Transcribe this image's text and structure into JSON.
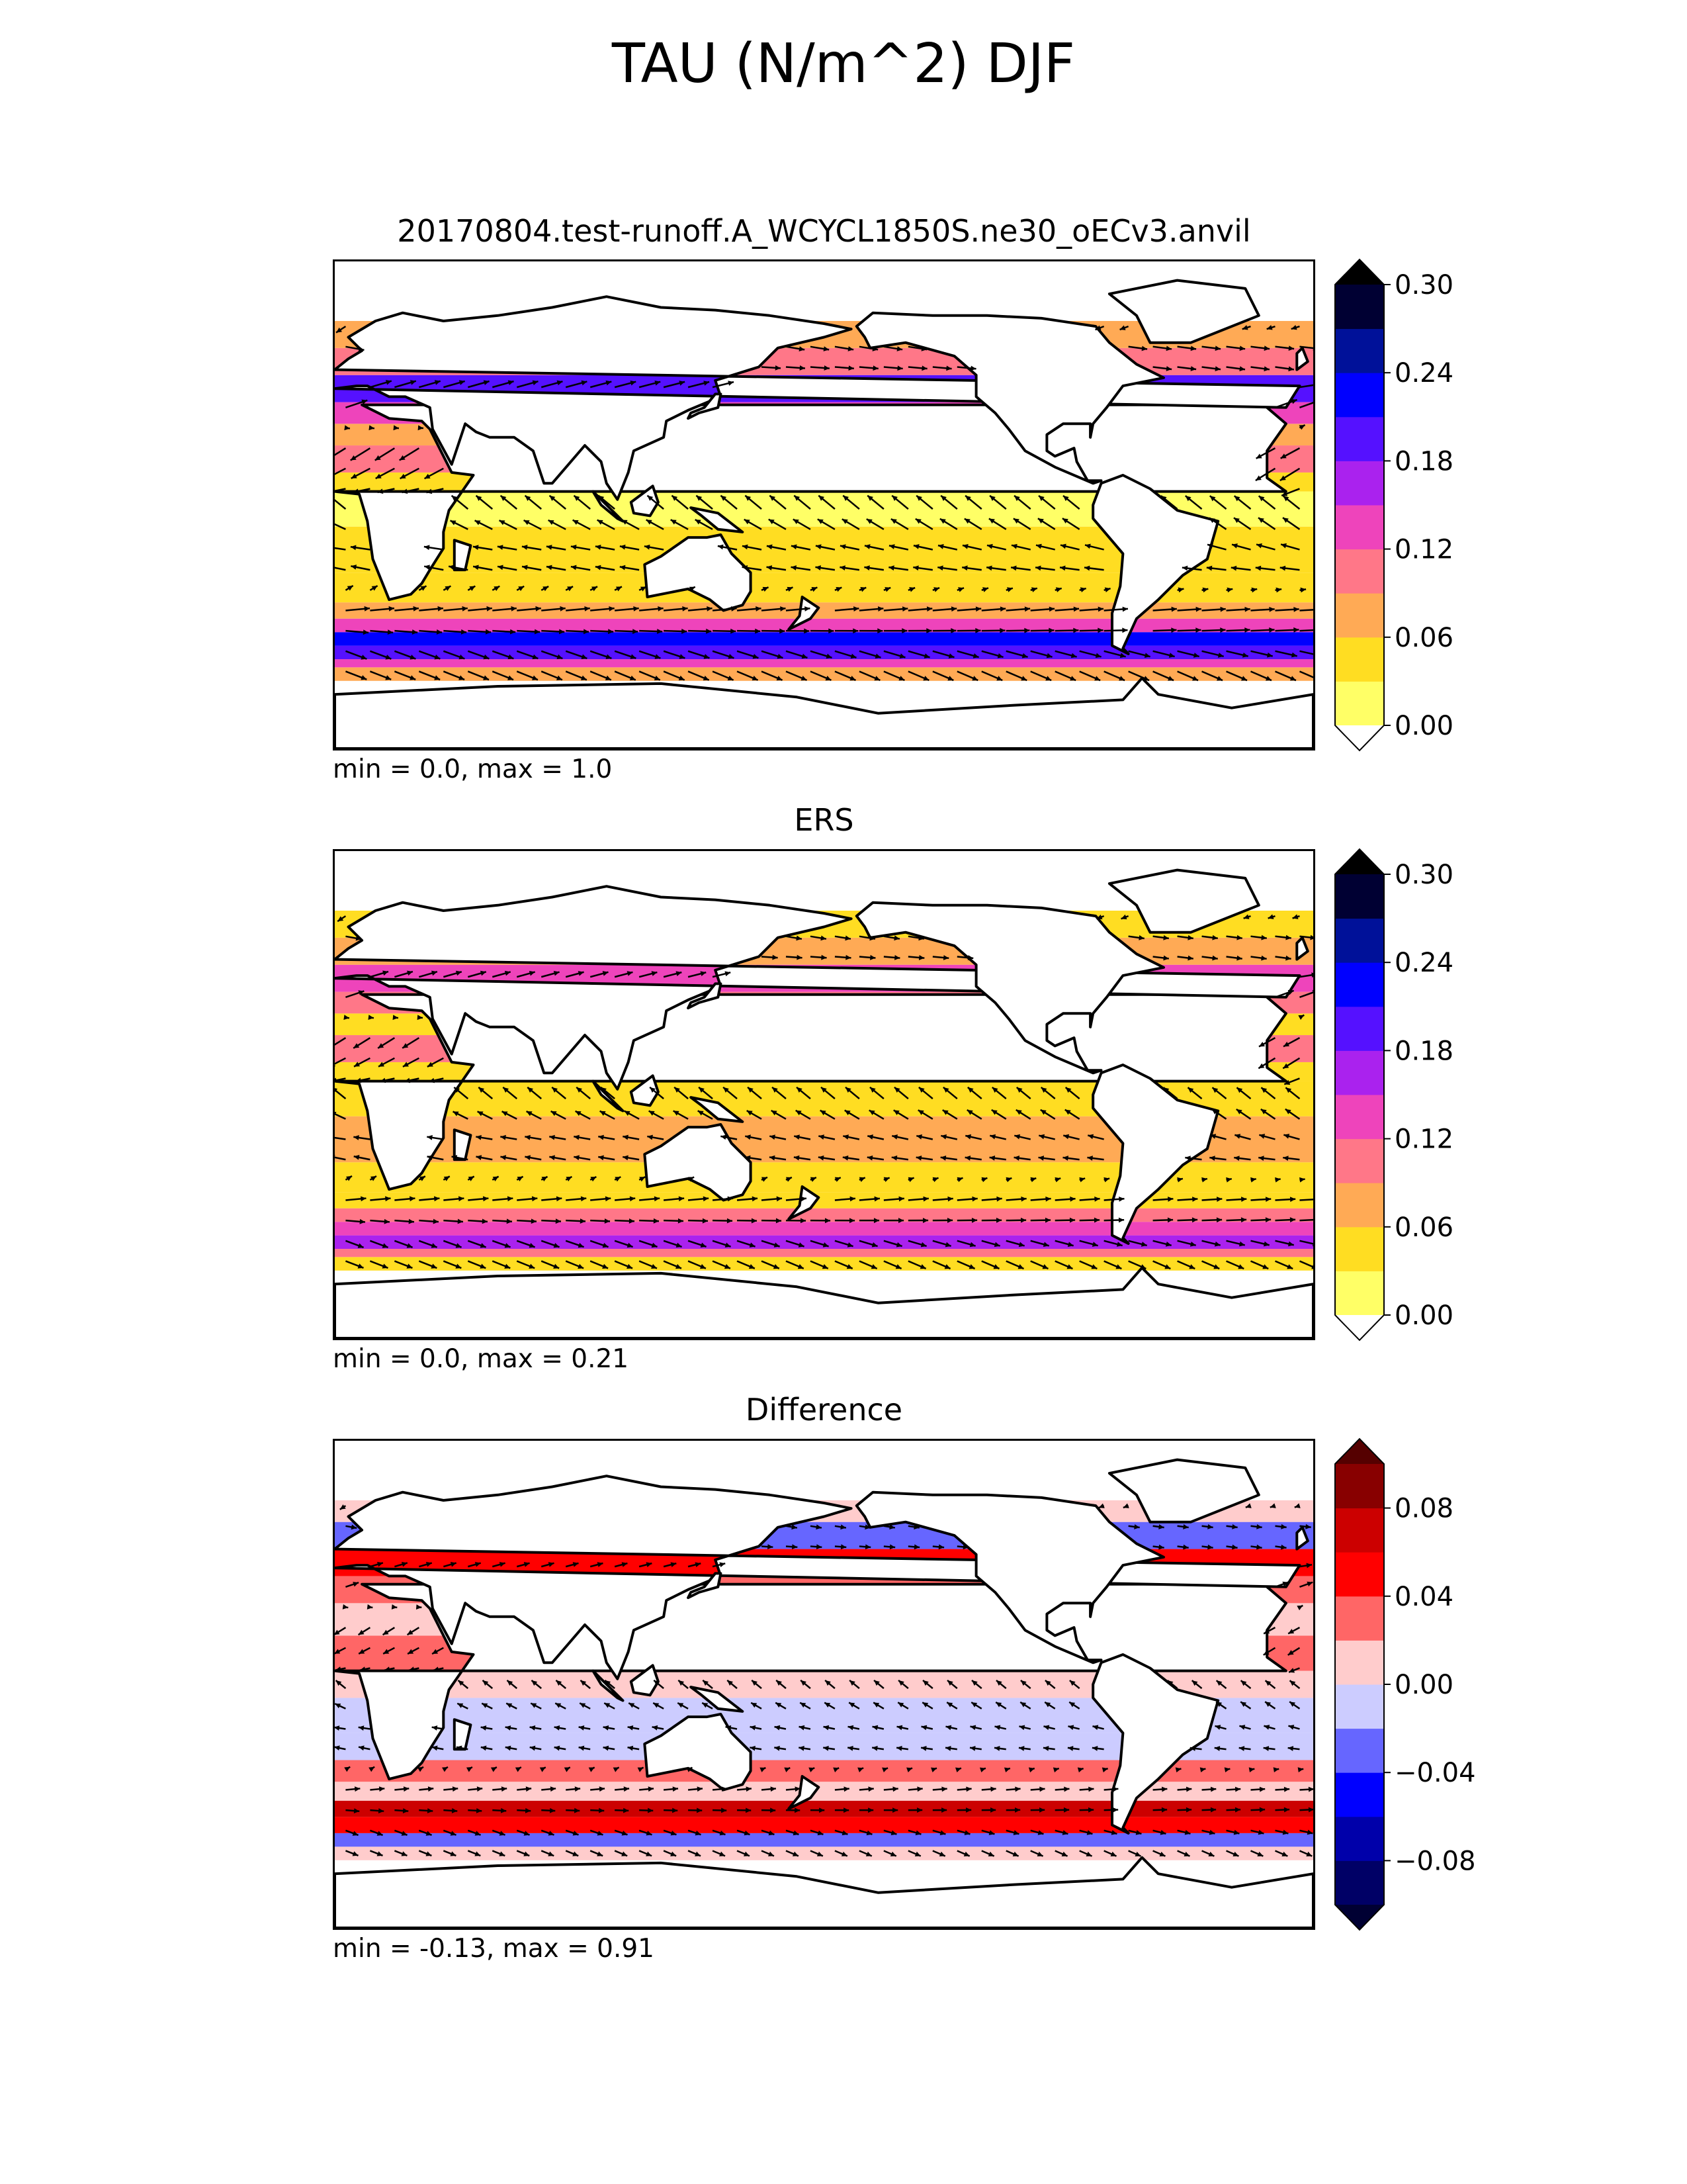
{
  "figure": {
    "title": "TAU (N/m^2) DJF"
  },
  "panels": [
    {
      "title": "20170804.test-runoff.A_WCYCL1850S.ne30_oECv3.anvil",
      "stats": "min = 0.0, max = 1.0"
    },
    {
      "title": "ERS",
      "stats": "min = 0.0, max = 0.21"
    },
    {
      "title": "Difference",
      "stats": "min = -0.13, max = 0.91"
    }
  ],
  "chart_data": [
    {
      "type": "heatmap",
      "title": "20170804.test-runoff.A_WCYCL1850S.ne30_oECv3.anvil",
      "xlabel": "",
      "ylabel": "",
      "projection": "global map, centered at 180 longitude",
      "xlim": [
        0,
        360
      ],
      "ylim": [
        -90,
        90
      ],
      "field": "surface wind stress magnitude with stress vectors",
      "stats": {
        "min": 0.0,
        "max": 1.0
      },
      "colorbar": {
        "levels": [
          0.0,
          0.03,
          0.06,
          0.09,
          0.12,
          0.15,
          0.18,
          0.21,
          0.24,
          0.27,
          0.3
        ],
        "ticks": [
          "0.00",
          "0.06",
          "0.12",
          "0.18",
          "0.24",
          "0.30"
        ],
        "colors": [
          "#ffff66",
          "#ffdd22",
          "#ffaa55",
          "#ff7788",
          "#ee44bb",
          "#aa22ee",
          "#5511ff",
          "#0000ff",
          "#001199",
          "#000033"
        ],
        "extend_min_color": "#ffffff",
        "extend_max_color": "#000000"
      },
      "bands": [
        {
          "lat_min": -65,
          "lat_max": -60,
          "value": 0.06
        },
        {
          "lat_min": -60,
          "lat_max": -57,
          "value": 0.12
        },
        {
          "lat_min": -57,
          "lat_max": -52,
          "value": 0.2
        },
        {
          "lat_min": -52,
          "lat_max": -47,
          "value": 0.23
        },
        {
          "lat_min": -47,
          "lat_max": -42,
          "value": 0.13
        },
        {
          "lat_min": -42,
          "lat_max": -36,
          "value": 0.06
        },
        {
          "lat_min": -36,
          "lat_max": -25,
          "value": 0.03
        },
        {
          "lat_min": -25,
          "lat_max": -8,
          "value": 0.05
        },
        {
          "lat_min": -8,
          "lat_max": 5,
          "value": 0.02
        },
        {
          "lat_min": 5,
          "lat_max": 12,
          "value": 0.05
        },
        {
          "lat_min": 12,
          "lat_max": 22,
          "value": 0.1
        },
        {
          "lat_min": 22,
          "lat_max": 30,
          "value": 0.06
        },
        {
          "lat_min": 30,
          "lat_max": 38,
          "value": 0.13
        },
        {
          "lat_min": 38,
          "lat_max": 48,
          "value": 0.19
        },
        {
          "lat_min": 48,
          "lat_max": 58,
          "value": 0.1
        },
        {
          "lat_min": 58,
          "lat_max": 68,
          "value": 0.06
        }
      ],
      "vector_scale": 1.0
    },
    {
      "type": "heatmap",
      "title": "ERS",
      "xlabel": "",
      "ylabel": "",
      "projection": "global map, centered at 180 longitude",
      "xlim": [
        0,
        360
      ],
      "ylim": [
        -90,
        90
      ],
      "field": "surface wind stress magnitude with stress vectors",
      "stats": {
        "min": 0.0,
        "max": 0.21
      },
      "colorbar": {
        "levels": [
          0.0,
          0.03,
          0.06,
          0.09,
          0.12,
          0.15,
          0.18,
          0.21,
          0.24,
          0.27,
          0.3
        ],
        "ticks": [
          "0.00",
          "0.06",
          "0.12",
          "0.18",
          "0.24",
          "0.30"
        ],
        "colors": [
          "#ffff66",
          "#ffdd22",
          "#ffaa55",
          "#ff7788",
          "#ee44bb",
          "#aa22ee",
          "#5511ff",
          "#0000ff",
          "#001199",
          "#000033"
        ],
        "extend_min_color": "#ffffff",
        "extend_max_color": "#000000"
      },
      "bands": [
        {
          "lat_min": -65,
          "lat_max": -60,
          "value": 0.05
        },
        {
          "lat_min": -60,
          "lat_max": -57,
          "value": 0.1
        },
        {
          "lat_min": -57,
          "lat_max": -52,
          "value": 0.16
        },
        {
          "lat_min": -52,
          "lat_max": -47,
          "value": 0.14
        },
        {
          "lat_min": -47,
          "lat_max": -42,
          "value": 0.1
        },
        {
          "lat_min": -42,
          "lat_max": -36,
          "value": 0.05
        },
        {
          "lat_min": -36,
          "lat_max": -25,
          "value": 0.03
        },
        {
          "lat_min": -25,
          "lat_max": -8,
          "value": 0.06
        },
        {
          "lat_min": -8,
          "lat_max": 5,
          "value": 0.03
        },
        {
          "lat_min": 5,
          "lat_max": 12,
          "value": 0.05
        },
        {
          "lat_min": 12,
          "lat_max": 22,
          "value": 0.1
        },
        {
          "lat_min": 22,
          "lat_max": 30,
          "value": 0.05
        },
        {
          "lat_min": 30,
          "lat_max": 38,
          "value": 0.1
        },
        {
          "lat_min": 38,
          "lat_max": 48,
          "value": 0.14
        },
        {
          "lat_min": 48,
          "lat_max": 58,
          "value": 0.08
        },
        {
          "lat_min": 58,
          "lat_max": 68,
          "value": 0.05
        }
      ],
      "vector_scale": 0.85
    },
    {
      "type": "heatmap",
      "title": "Difference",
      "xlabel": "",
      "ylabel": "",
      "projection": "global map, centered at 180 longitude",
      "xlim": [
        0,
        360
      ],
      "ylim": [
        -90,
        90
      ],
      "field": "wind stress magnitude difference with difference vectors",
      "stats": {
        "min": -0.13,
        "max": 0.91
      },
      "colorbar": {
        "levels": [
          -0.1,
          -0.08,
          -0.06,
          -0.04,
          -0.02,
          0.0,
          0.02,
          0.04,
          0.06,
          0.08,
          0.1
        ],
        "ticks": [
          "−0.08",
          "−0.04",
          "0.00",
          "0.04",
          "0.08"
        ],
        "colors": [
          "#000066",
          "#0000aa",
          "#0000ff",
          "#6666ff",
          "#ccccff",
          "#ffcccc",
          "#ff6666",
          "#ff0000",
          "#cc0000",
          "#880000"
        ],
        "extend_min_color": "#000033",
        "extend_max_color": "#550000"
      },
      "bands": [
        {
          "lat_min": -65,
          "lat_max": -60,
          "value": 0.01
        },
        {
          "lat_min": -60,
          "lat_max": -55,
          "value": -0.03
        },
        {
          "lat_min": -55,
          "lat_max": -49,
          "value": 0.05
        },
        {
          "lat_min": -49,
          "lat_max": -43,
          "value": 0.07
        },
        {
          "lat_min": -43,
          "lat_max": -36,
          "value": 0.01
        },
        {
          "lat_min": -36,
          "lat_max": -28,
          "value": 0.03
        },
        {
          "lat_min": -28,
          "lat_max": -18,
          "value": -0.01
        },
        {
          "lat_min": -18,
          "lat_max": -5,
          "value": -0.01
        },
        {
          "lat_min": -5,
          "lat_max": 5,
          "value": 0.01
        },
        {
          "lat_min": 5,
          "lat_max": 18,
          "value": 0.03
        },
        {
          "lat_min": 18,
          "lat_max": 30,
          "value": 0.01
        },
        {
          "lat_min": 30,
          "lat_max": 40,
          "value": 0.02
        },
        {
          "lat_min": 40,
          "lat_max": 50,
          "value": 0.05
        },
        {
          "lat_min": 50,
          "lat_max": 60,
          "value": -0.03
        },
        {
          "lat_min": 60,
          "lat_max": 68,
          "value": 0.01
        }
      ],
      "vector_scale": 0.6
    }
  ]
}
